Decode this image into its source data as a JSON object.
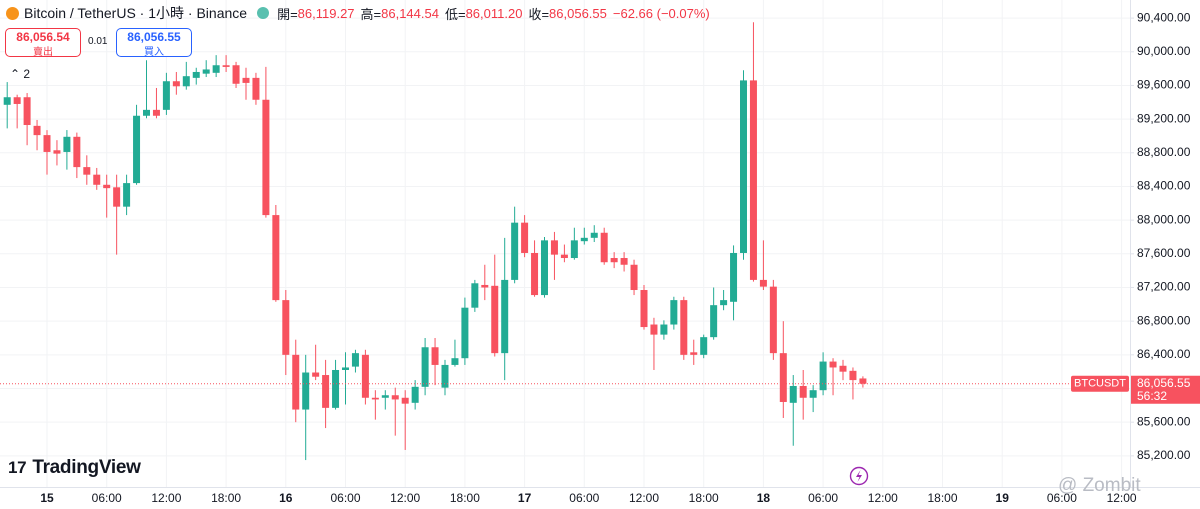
{
  "header": {
    "title": "Bitcoin / TetherUS · 1小時 · Binance",
    "open_label": "開=",
    "open": "86,119.27",
    "high_label": "高=",
    "high": "86,144.54",
    "low_label": "低=",
    "low": "86,011.20",
    "close_label": "收=",
    "close": "86,056.55",
    "change": "−62.66 (−0.07%)"
  },
  "order": {
    "sell_price": "86,056.54",
    "sell_label": "賣出",
    "quantity": "0.01",
    "buy_price": "86,056.55",
    "buy_label": "買入",
    "indicators_count": "2"
  },
  "price_tag": {
    "price": "86,056.55",
    "countdown": "56:32"
  },
  "logo": "TradingView",
  "watermark": "@ Zombit",
  "chart_data": {
    "type": "candlestick",
    "categories": [
      null,
      null,
      null,
      null,
      "15",
      null,
      null,
      null,
      null,
      null,
      "06:00",
      null,
      null,
      null,
      null,
      null,
      "12:00",
      null,
      null,
      null,
      null,
      null,
      "18:00",
      null,
      null,
      null,
      null,
      null,
      "16",
      null,
      null,
      null,
      null,
      null,
      "06:00",
      null,
      null,
      null,
      null,
      null,
      "12:00",
      null,
      null,
      null,
      null,
      null,
      "18:00",
      null,
      null,
      null,
      null,
      null,
      "17",
      null,
      null,
      null,
      null,
      null,
      "06:00",
      null,
      null,
      null,
      null,
      null,
      "12:00",
      null,
      null,
      null,
      null,
      null,
      "18:00",
      null,
      null,
      null,
      null,
      null,
      "18",
      null,
      null,
      null,
      null,
      null,
      "06:00",
      null,
      null,
      null,
      null,
      null,
      "12:00",
      null,
      null,
      null,
      null,
      null,
      "18:00",
      null,
      null,
      null,
      null,
      null,
      "19",
      null,
      null,
      null,
      null,
      null,
      "06:00",
      null,
      null,
      null,
      null,
      null,
      "12:00"
    ],
    "series": [
      {
        "name": "BTCUSDT",
        "up_color": "#22ab94",
        "down_color": "#f7525f",
        "open": [
          89370,
          89460,
          89460,
          89120,
          89010,
          88830,
          88810,
          88990,
          88630,
          88540,
          88420,
          88390,
          88160,
          88440,
          89240,
          89310,
          89310,
          89650,
          89590,
          89690,
          89740,
          89750,
          89840,
          89840,
          89690,
          89690,
          89430,
          88060,
          87050,
          86400,
          85750,
          86190,
          86160,
          85770,
          86220,
          86260,
          86400,
          85890,
          85890,
          85920,
          85890,
          85830,
          86020,
          86490,
          86010,
          86280,
          86360,
          86960,
          87230,
          87220,
          86420,
          87290,
          87970,
          87610,
          87110,
          87760,
          87590,
          87550,
          87750,
          87790,
          87850,
          87550,
          87550,
          87470,
          87170,
          86760,
          86640,
          86760,
          87050,
          86430,
          86400,
          86610,
          86990,
          87030,
          87610,
          89660,
          87290,
          87210,
          86420,
          85830,
          86030,
          85890,
          85980,
          86320,
          86270,
          86210,
          86119.27,
          null,
          null,
          null,
          null,
          null,
          null,
          null,
          null,
          null,
          null,
          null,
          null,
          null,
          null,
          null,
          null,
          null,
          null,
          null,
          null,
          null,
          null,
          null,
          null,
          null,
          null
        ],
        "high": [
          89640,
          89490,
          89510,
          89190,
          89070,
          88950,
          89070,
          89040,
          88770,
          88620,
          88540,
          88540,
          88540,
          89370,
          89900,
          89570,
          89750,
          89760,
          89880,
          89810,
          89900,
          89960,
          89960,
          89880,
          89810,
          89750,
          89820,
          88180,
          87170,
          86580,
          86400,
          86520,
          86340,
          86340,
          86430,
          86460,
          86460,
          85980,
          85980,
          86010,
          85980,
          86100,
          86600,
          86600,
          86340,
          86580,
          87080,
          87290,
          87470,
          87590,
          87790,
          88160,
          88060,
          87760,
          87800,
          87860,
          87710,
          87910,
          87910,
          87940,
          87910,
          87620,
          87620,
          87530,
          87230,
          86840,
          86810,
          87090,
          87090,
          86580,
          86640,
          87200,
          87170,
          87700,
          89780,
          90350,
          87760,
          87290,
          86800,
          86160,
          86220,
          86040,
          86430,
          86360,
          86340,
          86250,
          86144.54,
          null,
          null,
          null,
          null,
          null,
          null,
          null,
          null,
          null,
          null,
          null,
          null,
          null,
          null,
          null,
          null,
          null,
          null,
          null,
          null,
          null,
          null,
          null,
          null,
          null,
          null
        ],
        "low": [
          89090,
          89090,
          88890,
          88830,
          88540,
          88650,
          88600,
          88500,
          88420,
          88360,
          88030,
          87590,
          88060,
          88420,
          89210,
          89210,
          89250,
          89490,
          89550,
          89610,
          89700,
          89700,
          89760,
          89570,
          89430,
          89370,
          88030,
          87030,
          86160,
          85600,
          85150,
          86100,
          85530,
          85750,
          85810,
          86190,
          85810,
          85630,
          85750,
          85440,
          85270,
          85750,
          85920,
          86040,
          85920,
          86260,
          86280,
          86910,
          87050,
          86380,
          86100,
          87250,
          87560,
          87090,
          87080,
          87290,
          87500,
          87530,
          87710,
          87740,
          87470,
          87430,
          87390,
          87110,
          86700,
          86220,
          86580,
          86700,
          86340,
          86280,
          86360,
          86580,
          86930,
          86810,
          87530,
          87270,
          87170,
          86340,
          85650,
          85320,
          85630,
          85720,
          85920,
          85920,
          86100,
          85870,
          86011.2,
          null,
          null,
          null,
          null,
          null,
          null,
          null,
          null,
          null,
          null,
          null,
          null,
          null,
          null,
          null,
          null,
          null,
          null,
          null,
          null,
          null,
          null,
          null,
          null,
          null,
          null
        ],
        "close": [
          89460,
          89380,
          89130,
          89010,
          88810,
          88790,
          88990,
          88630,
          88540,
          88420,
          88380,
          88160,
          88440,
          89240,
          89310,
          89240,
          89650,
          89590,
          89710,
          89760,
          89790,
          89840,
          89820,
          89620,
          89630,
          89430,
          88060,
          87050,
          86400,
          85750,
          86190,
          86140,
          85770,
          86220,
          86250,
          86420,
          85890,
          85870,
          85920,
          85870,
          85820,
          86020,
          86490,
          86280,
          86280,
          86360,
          86960,
          87250,
          87200,
          86420,
          87290,
          87970,
          87610,
          87110,
          87760,
          87590,
          87550,
          87760,
          87790,
          87850,
          87500,
          87500,
          87470,
          87170,
          86730,
          86640,
          86760,
          87050,
          86400,
          86400,
          86610,
          86990,
          87050,
          87610,
          89660,
          87290,
          87210,
          86420,
          85840,
          86030,
          85890,
          85980,
          86320,
          86250,
          86200,
          86100,
          86056.55,
          null,
          null,
          null,
          null,
          null,
          null,
          null,
          null,
          null,
          null,
          null,
          null,
          null,
          null,
          null,
          null,
          null,
          null,
          null,
          null,
          null,
          null,
          null,
          null,
          null,
          null
        ]
      }
    ],
    "ylim": [
      84830,
      90615
    ],
    "yticks": [
      {
        "value": 85200,
        "label": "85,200.00"
      },
      {
        "value": 85600,
        "label": "85,600.00"
      },
      {
        "value": 86000,
        "label": "86,000.00"
      },
      {
        "value": 86400,
        "label": "86,400.00"
      },
      {
        "value": 86800,
        "label": "86,800.00"
      },
      {
        "value": 87200,
        "label": "87,200.00"
      },
      {
        "value": 87600,
        "label": "87,600.00"
      },
      {
        "value": 88000,
        "label": "88,000.00"
      },
      {
        "value": 88400,
        "label": "88,400.00"
      },
      {
        "value": 88800,
        "label": "88,800.00"
      },
      {
        "value": 89200,
        "label": "89,200.00"
      },
      {
        "value": 89600,
        "label": "89,600.00"
      },
      {
        "value": 90000,
        "label": "90,000.00"
      },
      {
        "value": 90400,
        "label": "90,400.00"
      }
    ],
    "grid": true
  }
}
